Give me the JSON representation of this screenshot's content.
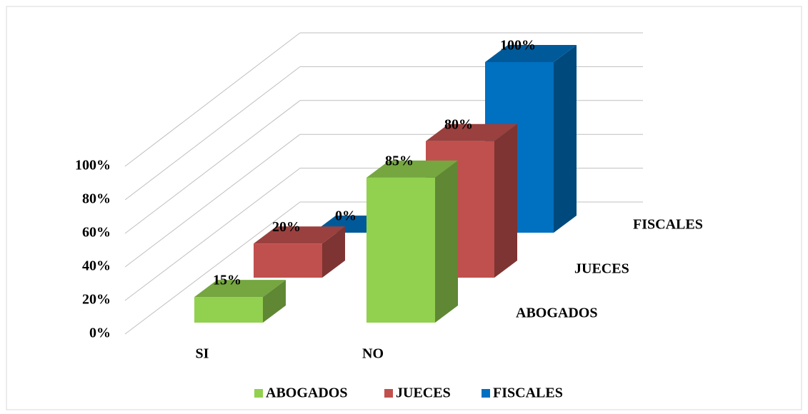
{
  "chart_data": {
    "type": "bar3d",
    "categories": [
      "SI",
      "NO"
    ],
    "series": [
      {
        "name": "ABOGADOS",
        "color": "#92d050",
        "values": [
          15,
          85
        ],
        "value_labels": [
          "15%",
          "85%"
        ]
      },
      {
        "name": "JUECES",
        "color": "#c0504d",
        "values": [
          20,
          80
        ],
        "value_labels": [
          "20%",
          "80%"
        ]
      },
      {
        "name": "FISCALES",
        "color": "#0070c0",
        "values": [
          0,
          100
        ],
        "value_labels": [
          "0%",
          "100%"
        ]
      }
    ],
    "ylim": [
      0,
      100
    ],
    "yticks": [
      {
        "value": 0,
        "label": "0%"
      },
      {
        "value": 20,
        "label": "20%"
      },
      {
        "value": 40,
        "label": "40%"
      },
      {
        "value": 60,
        "label": "60%"
      },
      {
        "value": 80,
        "label": "80%"
      },
      {
        "value": 100,
        "label": "100%"
      }
    ],
    "grid": true,
    "legend": "bottom"
  }
}
